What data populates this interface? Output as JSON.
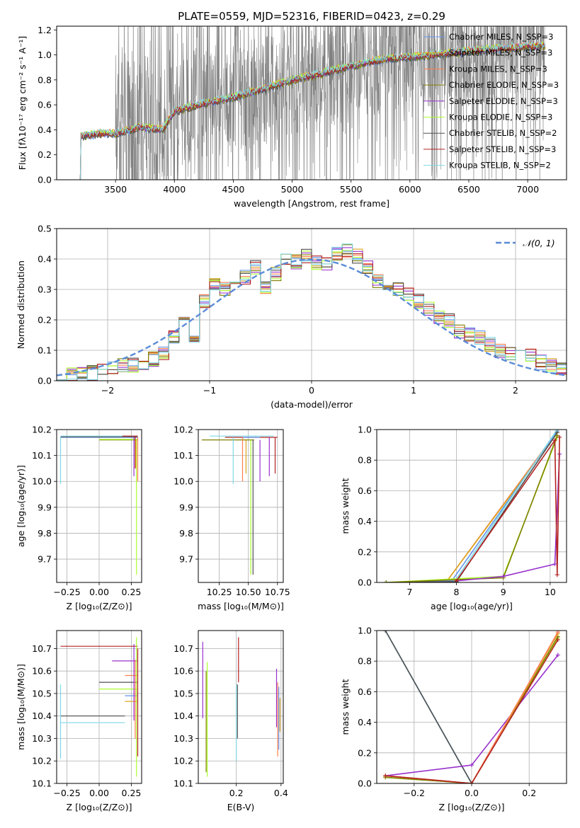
{
  "colors": {
    "chabrier_miles": "#6495ed",
    "salpeter_miles": "#daa520",
    "kroupa_miles": "#ff7f50",
    "chabrier_elodie": "#808000",
    "salpeter_elodie": "#9932cc",
    "kroupa_elodie": "#adff2f",
    "chabrier_stelib": "#505050",
    "salpeter_stelib": "#b22222",
    "kroupa_stelib": "#7fd8e6",
    "data": "#808080",
    "normal": "#5b8bd6"
  },
  "chart_data": [
    {
      "id": "spectrum",
      "type": "line",
      "title": "PLATE=0559, MJD=52316, FIBERID=0423, z=0.29",
      "xlabel": "wavelength [Angstrom, rest frame]",
      "ylabel": "Flux [fλ10⁻¹⁷ erg cm⁻² s⁻¹ A⁻¹]",
      "xlim": [
        3000,
        7330
      ],
      "ylim": [
        0,
        1.23
      ],
      "xticks": [
        "3500",
        "4000",
        "4500",
        "5000",
        "5500",
        "6000",
        "6500",
        "7000"
      ],
      "yticks": [
        "0.0",
        "0.2",
        "0.4",
        "0.6",
        "0.8",
        "1.0",
        "1.2"
      ],
      "continuum": {
        "x": [
          3200,
          3400,
          3500,
          3700,
          3900,
          4000,
          4200,
          4500,
          4800,
          5000,
          5200,
          5500,
          5800,
          6000,
          6300,
          6600,
          6900,
          7100,
          7150
        ],
        "y": [
          0.35,
          0.37,
          0.37,
          0.42,
          0.4,
          0.55,
          0.6,
          0.66,
          0.74,
          0.8,
          0.84,
          0.91,
          0.97,
          0.98,
          1.01,
          1.04,
          1.06,
          1.07,
          1.07
        ]
      },
      "legend": [
        {
          "name": "Chabrier MILES, N_SSP=3",
          "key": "chabrier_miles"
        },
        {
          "name": "Salpeter MILES, N_SSP=3",
          "key": "salpeter_miles"
        },
        {
          "name": "Kroupa MILES, N_SSP=3",
          "key": "kroupa_miles"
        },
        {
          "name": "Chabrier ELODIE, N_SSP=3",
          "key": "chabrier_elodie"
        },
        {
          "name": "Salpeter ELODIE, N_SSP=3",
          "key": "salpeter_elodie"
        },
        {
          "name": "Kroupa ELODIE, N_SSP=3",
          "key": "kroupa_elodie"
        },
        {
          "name": "Chabrier STELIB, N_SSP=2",
          "key": "chabrier_stelib"
        },
        {
          "name": "Salpeter STELIB, N_SSP=3",
          "key": "salpeter_stelib"
        },
        {
          "name": "Kroupa STELIB, N_SSP=2",
          "key": "kroupa_stelib"
        }
      ],
      "legend_placement": "right"
    },
    {
      "id": "residuals",
      "type": "histogram",
      "xlabel": "(data-model)/error",
      "ylabel": "Normed distribution",
      "xlim": [
        -2.5,
        2.5
      ],
      "ylim": [
        0,
        0.5
      ],
      "xticks": [
        "−2",
        "−1",
        "0",
        "1",
        "2"
      ],
      "yticks": [
        "0.0",
        "0.1",
        "0.2",
        "0.3",
        "0.4",
        "0.5"
      ],
      "legend": [
        {
          "name": "𝒩(0, 1)",
          "key": "normal"
        }
      ],
      "legend_placement": "top-right",
      "bin_edges_start": -2.5,
      "bin_width": 0.1,
      "base_values": [
        0.01,
        0.02,
        0.02,
        0.025,
        0.03,
        0.04,
        0.05,
        0.05,
        0.055,
        0.07,
        0.09,
        0.14,
        0.2,
        0.15,
        0.26,
        0.32,
        0.3,
        0.3,
        0.34,
        0.37,
        0.3,
        0.35,
        0.4,
        0.39,
        0.41,
        0.39,
        0.38,
        0.42,
        0.43,
        0.41,
        0.37,
        0.33,
        0.32,
        0.3,
        0.28,
        0.26,
        0.24,
        0.21,
        0.2,
        0.16,
        0.15,
        0.14,
        0.12,
        0.1,
        0.09,
        0.08,
        0.08,
        0.06,
        0.05,
        0.04
      ]
    },
    {
      "id": "age-vs-z",
      "type": "errorbar",
      "xlabel": "Z [log₁₀(Z/Z⊙)]",
      "ylabel": "age  [log₁₀(age/yr)]",
      "xlim": [
        -0.33,
        0.33
      ],
      "ylim": [
        9.61,
        10.2
      ],
      "xticks": [
        "−0.25",
        "0.00",
        "0.25"
      ],
      "yticks": [
        "9.7",
        "9.8",
        "9.9",
        "10.0",
        "10.1",
        "10.2"
      ]
    },
    {
      "id": "age-vs-mass",
      "type": "errorbar",
      "xlabel": "mass [log₁₀(M/M⊙)]",
      "ylabel": "",
      "xlim": [
        10.07,
        10.8
      ],
      "ylim": [
        9.61,
        10.2
      ],
      "xticks": [
        "10.25",
        "10.50",
        "10.75"
      ],
      "yticks": [
        "9.7",
        "9.8",
        "9.9",
        "10.0",
        "10.1",
        "10.2"
      ]
    },
    {
      "id": "mass-weight-vs-age",
      "type": "line",
      "xlabel": "age  [log₁₀(age/yr)]",
      "ylabel": "mass weight",
      "xlim": [
        6.3,
        10.35
      ],
      "ylim": [
        0,
        1.0
      ],
      "xticks": [
        "7",
        "8",
        "9",
        "10"
      ],
      "yticks": [
        "0.0",
        "0.2",
        "0.4",
        "0.6",
        "0.8",
        "1.0"
      ]
    },
    {
      "id": "mass-vs-z",
      "type": "errorbar",
      "xlabel": "Z [log₁₀(Z/Z⊙)]",
      "ylabel": "mass [log₁₀(M/M⊙)]",
      "xlim": [
        -0.33,
        0.33
      ],
      "ylim": [
        10.1,
        10.78
      ],
      "xticks": [
        "−0.25",
        "0.00",
        "0.25"
      ],
      "yticks": [
        "10.1",
        "10.2",
        "10.3",
        "10.4",
        "10.5",
        "10.6",
        "10.7"
      ]
    },
    {
      "id": "mass-vs-ebv",
      "type": "errorbar",
      "xlabel": "E(B-V)",
      "ylabel": "",
      "xlim": [
        0.03,
        0.41
      ],
      "ylim": [
        10.1,
        10.78
      ],
      "xticks": [
        "0.2",
        "0.4"
      ],
      "yticks": [
        "10.1",
        "10.2",
        "10.3",
        "10.4",
        "10.5",
        "10.6",
        "10.7"
      ]
    },
    {
      "id": "mass-weight-vs-z",
      "type": "line",
      "xlabel": "Z [log₁₀(Z/Z⊙)]",
      "ylabel": "mass weight",
      "xlim": [
        -0.33,
        0.33
      ],
      "ylim": [
        0,
        1.0
      ],
      "xticks": [
        "−0.2",
        "0.0",
        "0.2"
      ],
      "yticks": [
        "0.0",
        "0.2",
        "0.4",
        "0.6",
        "0.8",
        "1.0"
      ]
    }
  ]
}
